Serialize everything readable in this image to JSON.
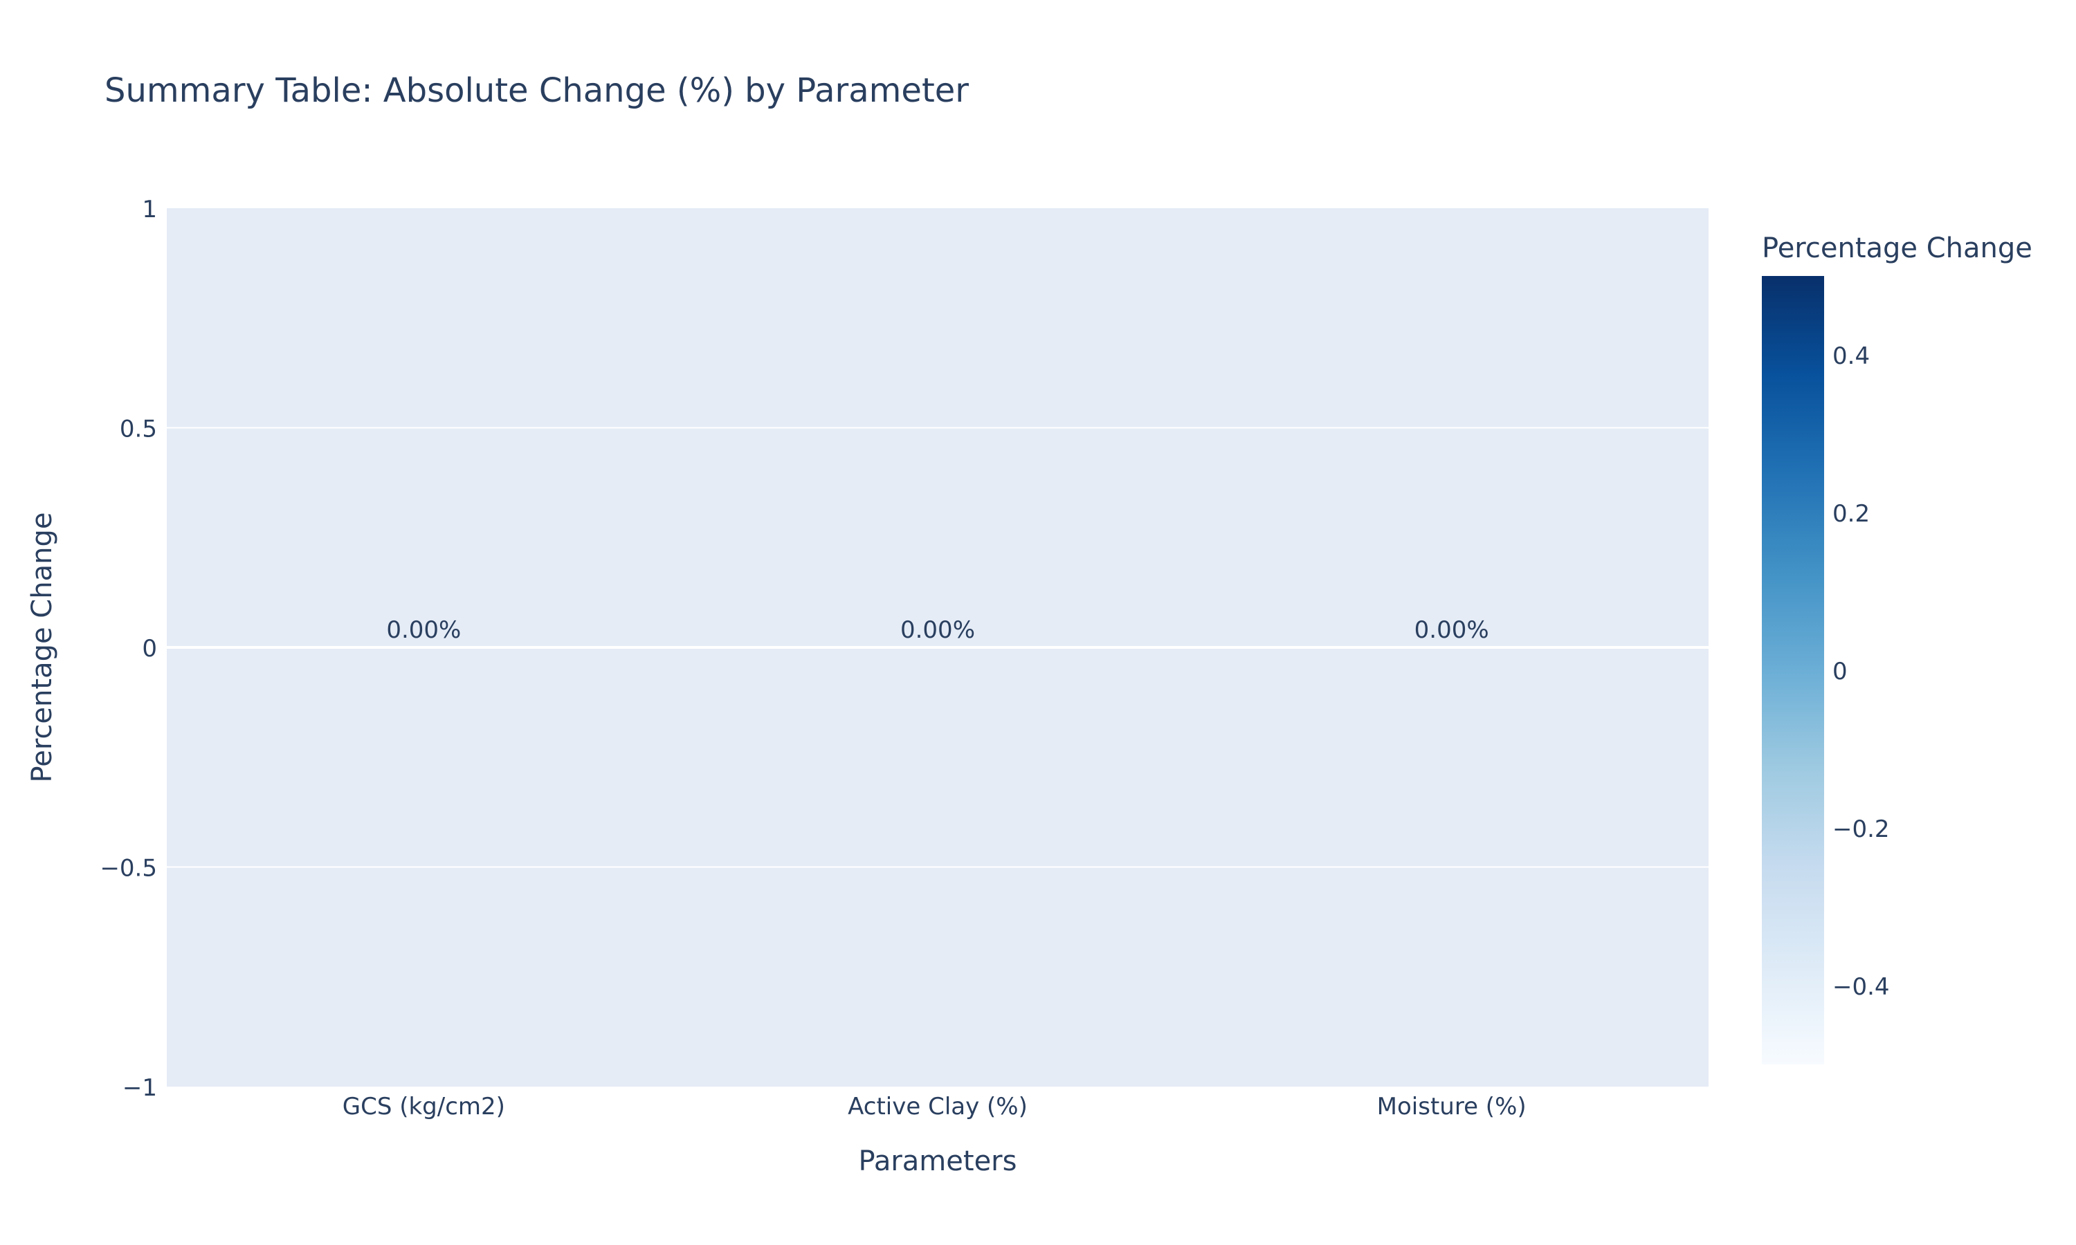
{
  "chart_data": {
    "type": "bar",
    "title": "Summary Table: Absolute Change (%) by Parameter",
    "xlabel": "Parameters",
    "ylabel": "Percentage Change",
    "categories": [
      "GCS (kg/cm2)",
      "Active Clay (%)",
      "Moisture (%)"
    ],
    "values": [
      0,
      0,
      0
    ],
    "data_labels": [
      "0.00%",
      "0.00%",
      "0.00%"
    ],
    "ylim": [
      -1,
      1
    ],
    "y_ticks": [
      {
        "value": 1,
        "label": "1"
      },
      {
        "value": 0.5,
        "label": "0.5"
      },
      {
        "value": 0,
        "label": "0"
      },
      {
        "value": -0.5,
        "label": "−0.5"
      },
      {
        "value": -1,
        "label": "−1"
      }
    ],
    "grid": true,
    "colorbar": {
      "title": "Percentage Change",
      "range": [
        -0.5,
        0.5
      ],
      "ticks": [
        {
          "value": 0.4,
          "label": "0.4"
        },
        {
          "value": 0.2,
          "label": "0.2"
        },
        {
          "value": 0,
          "label": "0"
        },
        {
          "value": -0.2,
          "label": "−0.2"
        },
        {
          "value": -0.4,
          "label": "−0.4"
        }
      ],
      "colorscale": [
        "#f7fbff",
        "#deebf7",
        "#c6dbef",
        "#9ecae1",
        "#6baed6",
        "#4292c6",
        "#2171b5",
        "#08519c",
        "#08306b"
      ]
    },
    "colors": {
      "plot_background": "#e5ecf6",
      "grid": "#ffffff",
      "text": "#2a3f5f",
      "bar_fill": "#6baed6"
    }
  }
}
